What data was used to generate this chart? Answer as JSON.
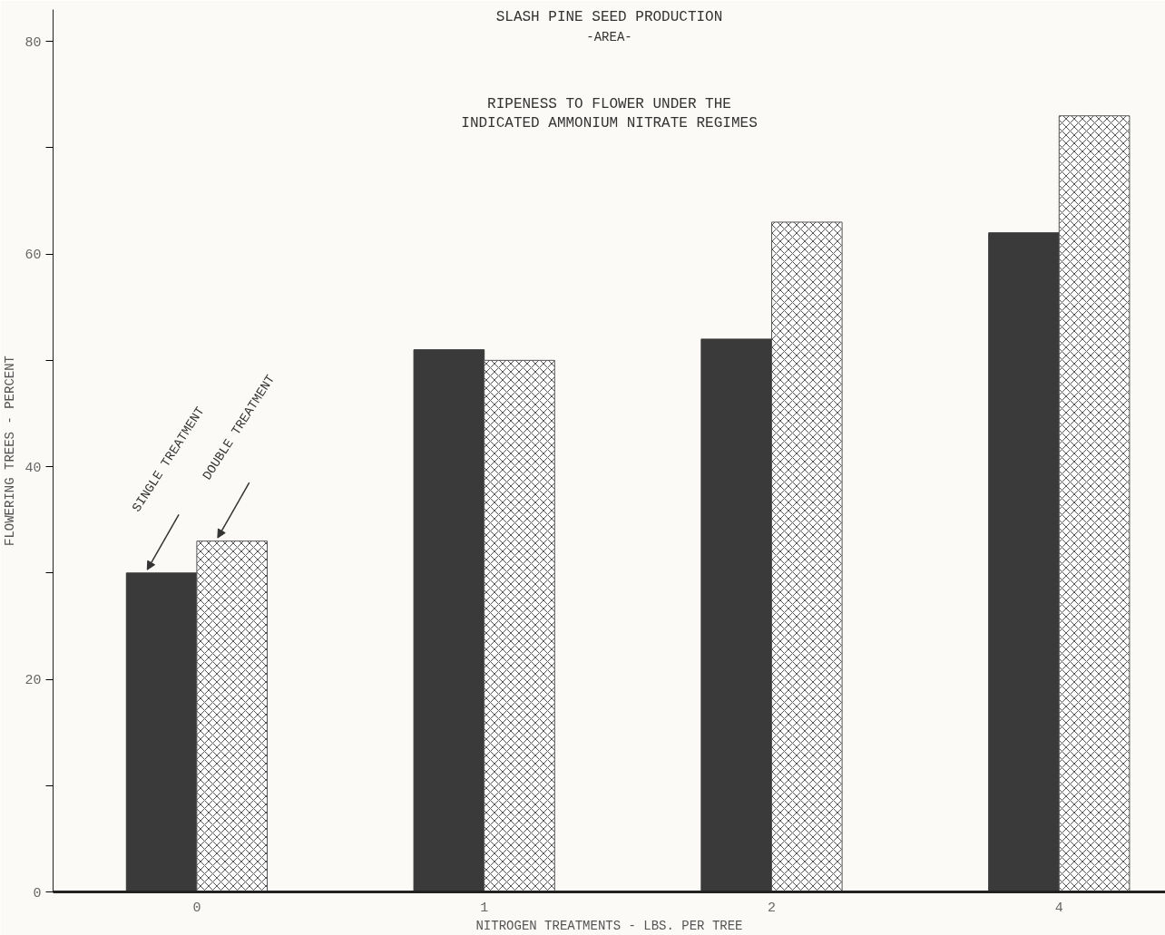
{
  "chart_data": {
    "type": "bar",
    "title": "SLASH PINE SEED PRODUCTION",
    "subtitle": "-AREA-",
    "annotations": [
      "RIPENESS TO FLOWER UNDER THE\nINDICATED AMMONIUM NITRATE REGIMES"
    ],
    "xlabel": "NITROGEN TREATMENTS - LBS. PER TREE",
    "ylabel": "FLOWERING TREES - PERCENT",
    "categories": [
      "0",
      "1",
      "2",
      "4"
    ],
    "series": [
      {
        "name": "SINGLE TREATMENT",
        "color": "#3a3a3a",
        "values": [
          30,
          51,
          52,
          62
        ]
      },
      {
        "name": "DOUBLE TREATMENT",
        "color": "#555555",
        "values": [
          33,
          50,
          63,
          73
        ]
      }
    ],
    "ylim": [
      0,
      83
    ],
    "yticks": [
      0,
      {
        "value": 10,
        "label": null
      },
      20,
      {
        "value": 30,
        "label": null
      },
      40,
      {
        "value": 50,
        "label": null
      },
      60,
      {
        "value": 70,
        "label": null
      },
      80
    ],
    "legend": false,
    "grid": false
  }
}
